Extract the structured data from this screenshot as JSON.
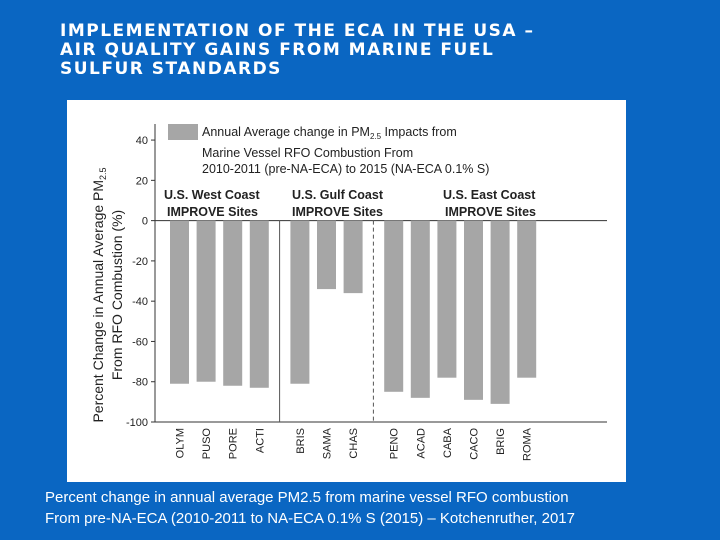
{
  "slide": {
    "title": "IMPLEMENTATION OF THE ECA IN THE USA –\nAIR QUALITY GAINS FROM MARINE FUEL\nSULFUR STANDARDS",
    "caption_line1": "Percent change in annual average PM2.5 from marine vessel RFO combustion",
    "caption_line2": "From pre-NA-ECA (2010-2011 to NA-ECA 0.1% S (2015) – Kotchenruther, 2017",
    "background_color": "#0a66c2"
  },
  "chart_data": {
    "type": "bar",
    "ylabel_line1": "Percent Change in Annual Average PM",
    "ylabel_sub": "2.5",
    "ylabel_line2": "From RFO Combustion (%)",
    "ylim": [
      -100,
      45
    ],
    "yticks": [
      "40",
      "20",
      "0",
      "-20",
      "-40",
      "-60",
      "-80",
      "-100"
    ],
    "categories": [
      "OLYM",
      "PUSO",
      "PORE",
      "ACTI",
      "BRIS",
      "SAMA",
      "CHAS",
      "PENO",
      "ACAD",
      "CABA",
      "CACO",
      "BRIG",
      "ROMA"
    ],
    "values": [
      -81,
      -80,
      -82,
      -83,
      -81,
      -34,
      -36,
      -85,
      -88,
      -78,
      -89,
      -91,
      -78
    ],
    "bar_color": "#a6a6a6",
    "legend": {
      "line1": "Annual Average change in PM",
      "line1_sub": "2.5",
      "line1_tail": " Impacts from",
      "line2": "Marine Vessel RFO Combustion From",
      "line3": "2010-2011 (pre-NA-ECA) to 2015 (NA-ECA 0.1% S)"
    },
    "groups": [
      {
        "line1": "U.S. West Coast",
        "line2": "IMPROVE Sites"
      },
      {
        "line1": "U.S. Gulf Coast",
        "line2": "IMPROVE Sites"
      },
      {
        "line1": "U.S. East Coast",
        "line2": "IMPROVE Sites"
      }
    ]
  }
}
